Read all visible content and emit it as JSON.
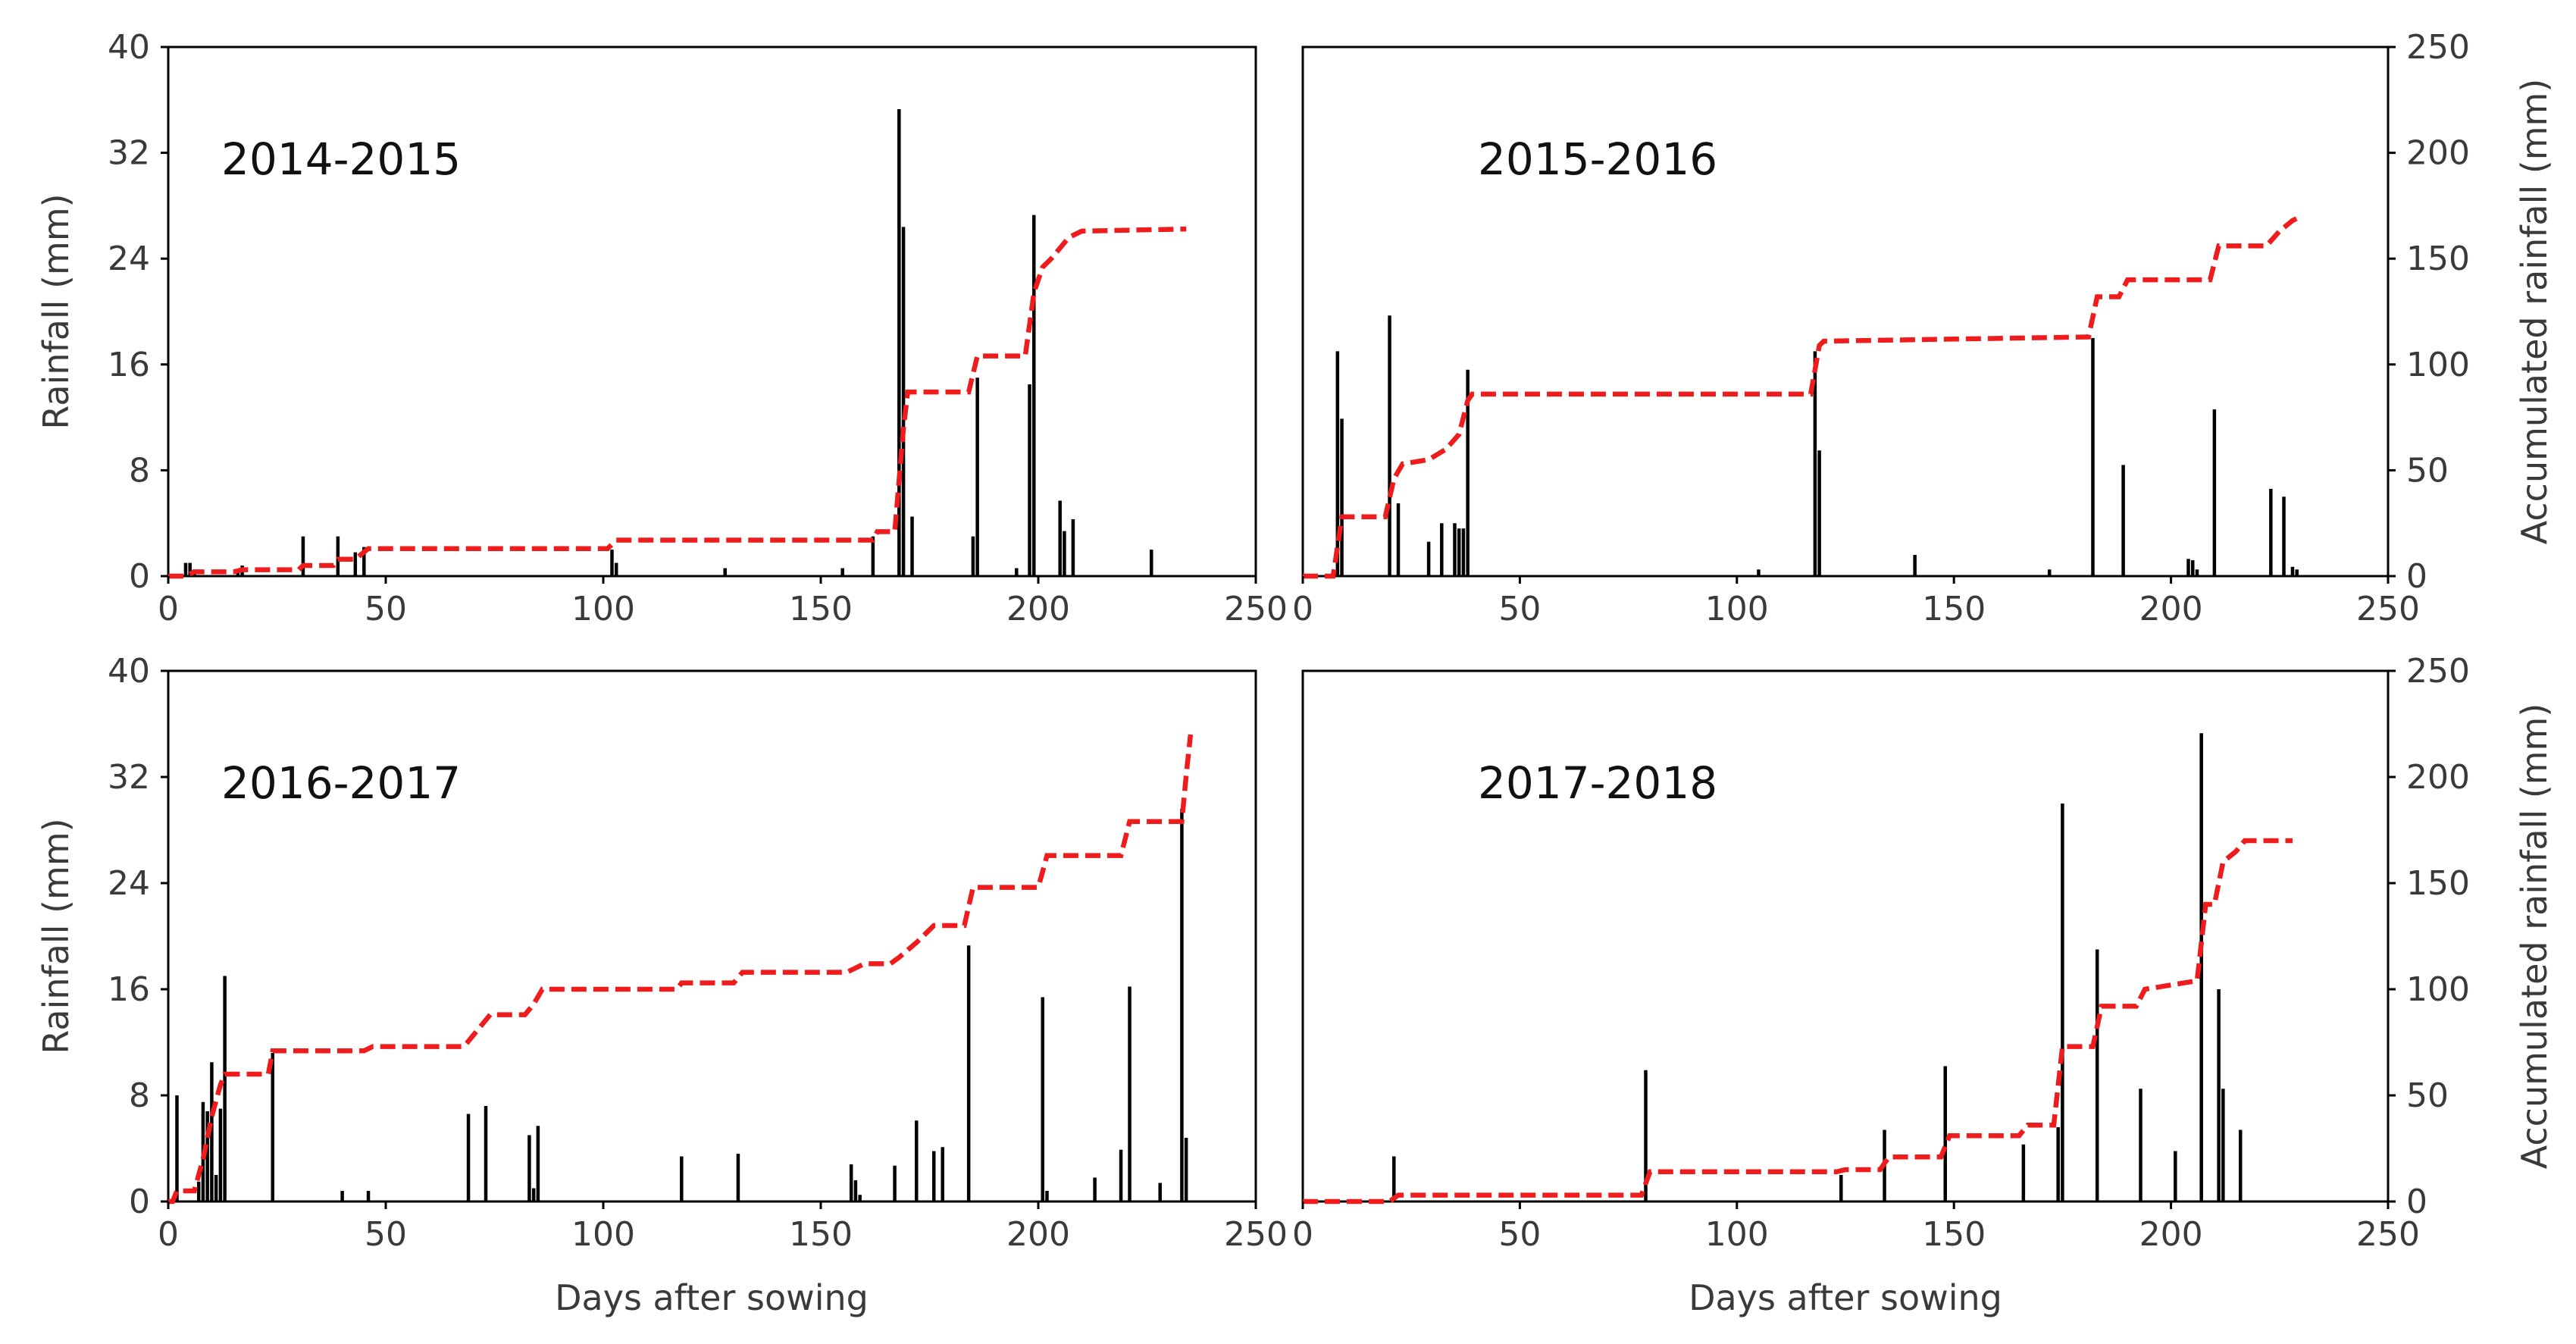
{
  "figure": {
    "xlabel": "Days after sowing",
    "ylabel_left": "Rainfall (mm)",
    "ylabel_right": "Accumulated rainfall (mm)",
    "colors": {
      "bars": "#000000",
      "accumulated_line": "#ee1c1c"
    }
  },
  "chart_data": [
    {
      "type": "bar",
      "title": "2014-2015",
      "xlabel": "",
      "ylabel": "Rainfall (mm)",
      "y2label": "",
      "xlim": [
        0,
        250
      ],
      "ylim": [
        0,
        40
      ],
      "y2lim": [
        0,
        250
      ],
      "xticks": [
        0,
        50,
        100,
        150,
        200,
        250
      ],
      "yticks": [
        0,
        8,
        16,
        24,
        32,
        40
      ],
      "y2ticks": [],
      "show_left_axis": true,
      "show_right_axis": false,
      "bars": {
        "name": "Daily rainfall (mm)",
        "x": [
          4,
          5,
          6,
          16,
          17,
          31,
          39,
          43,
          45,
          102,
          103,
          128,
          155,
          162,
          168,
          169,
          171,
          185,
          186,
          195,
          198,
          199,
          205,
          206,
          208,
          226
        ],
        "values": [
          1.0,
          1.0,
          0.5,
          0.5,
          0.8,
          3.0,
          3.0,
          1.8,
          2.2,
          2.0,
          1.0,
          0.6,
          0.6,
          3.0,
          35.3,
          26.4,
          4.5,
          3.0,
          15.0,
          0.6,
          14.5,
          27.3,
          5.7,
          3.4,
          4.3,
          2.0
        ]
      },
      "accumulated": {
        "name": "Accumulated rainfall (mm)",
        "x": [
          0,
          4,
          6,
          15,
          17,
          30,
          31,
          38,
          39,
          43,
          46,
          101,
          103,
          162,
          163,
          167,
          169,
          170,
          184,
          186,
          197,
          199,
          201,
          203,
          207,
          210,
          234
        ],
        "values": [
          0,
          0,
          2,
          2,
          3,
          3,
          5,
          5,
          8,
          8,
          13,
          13,
          17,
          17,
          21,
          21,
          70,
          87,
          87,
          104,
          104,
          134,
          146,
          150,
          160,
          163,
          164
        ]
      }
    },
    {
      "type": "bar",
      "title": "2015-2016",
      "xlabel": "",
      "ylabel": "",
      "y2label": "Accumulated rainfall (mm)",
      "xlim": [
        0,
        250
      ],
      "ylim": [
        0,
        40
      ],
      "y2lim": [
        0,
        250
      ],
      "xticks": [
        0,
        50,
        100,
        150,
        200,
        250
      ],
      "yticks": [],
      "y2ticks": [
        0,
        50,
        100,
        150,
        200,
        250
      ],
      "show_left_axis": false,
      "show_right_axis": true,
      "bars": {
        "name": "Daily rainfall (mm)",
        "x": [
          8,
          9,
          20,
          22,
          29,
          32,
          35,
          36,
          37,
          38,
          105,
          118,
          119,
          141,
          172,
          182,
          189,
          204,
          205,
          206,
          210,
          223,
          226,
          228,
          229
        ],
        "values": [
          17.0,
          11.9,
          19.7,
          5.5,
          2.6,
          4.0,
          4.0,
          3.6,
          3.6,
          15.6,
          0.5,
          17.0,
          9.5,
          1.6,
          0.5,
          18.0,
          8.4,
          1.3,
          1.2,
          0.5,
          12.6,
          6.6,
          6.0,
          0.7,
          0.5
        ]
      },
      "accumulated": {
        "name": "Accumulated rainfall (mm)",
        "x": [
          0,
          7,
          9,
          19,
          21,
          23,
          29,
          33,
          36,
          38,
          39,
          117,
          119,
          120,
          150,
          181,
          183,
          188,
          190,
          209,
          211,
          222,
          225,
          228,
          230
        ],
        "values": [
          0,
          0,
          28,
          28,
          46,
          53,
          55,
          60,
          67,
          83,
          86,
          86,
          109,
          111,
          112,
          113,
          132,
          132,
          140,
          140,
          156,
          156,
          163,
          168,
          170
        ]
      }
    },
    {
      "type": "bar",
      "title": "2016-2017",
      "xlabel": "Days after sowing",
      "ylabel": "Rainfall (mm)",
      "y2label": "",
      "xlim": [
        0,
        250
      ],
      "ylim": [
        0,
        40
      ],
      "y2lim": [
        0,
        250
      ],
      "xticks": [
        0,
        50,
        100,
        150,
        200,
        250
      ],
      "yticks": [
        0,
        8,
        16,
        24,
        32,
        40
      ],
      "y2ticks": [],
      "show_left_axis": true,
      "show_right_axis": false,
      "bars": {
        "name": "Daily rainfall (mm)",
        "x": [
          2,
          7,
          8,
          9,
          10,
          11,
          12,
          13,
          24,
          40,
          46,
          69,
          73,
          83,
          84,
          85,
          118,
          131,
          157,
          158,
          159,
          167,
          172,
          176,
          178,
          184,
          201,
          202,
          213,
          219,
          221,
          228,
          233,
          234
        ],
        "values": [
          8.0,
          1.5,
          7.5,
          6.8,
          10.5,
          2.0,
          7.0,
          17.0,
          11.2,
          0.8,
          0.8,
          6.6,
          7.2,
          5.0,
          1.0,
          5.7,
          3.4,
          3.6,
          2.8,
          1.6,
          0.5,
          2.7,
          6.1,
          3.8,
          4.1,
          19.3,
          15.4,
          0.8,
          1.8,
          3.9,
          16.2,
          1.4,
          29.6,
          4.8
        ]
      },
      "accumulated": {
        "name": "Accumulated rainfall (mm)",
        "x": [
          0,
          1,
          2,
          6,
          8,
          10,
          12,
          13,
          23,
          24,
          45,
          47,
          68,
          70,
          72,
          74,
          82,
          84,
          86,
          117,
          118,
          130,
          132,
          156,
          158,
          160,
          166,
          168,
          172,
          176,
          183,
          185,
          200,
          202,
          219,
          221,
          233,
          234,
          235
        ],
        "values": [
          0,
          0,
          5,
          5,
          20,
          40,
          55,
          60,
          60,
          71,
          71,
          73,
          73,
          78,
          83,
          88,
          88,
          93,
          100,
          100,
          103,
          103,
          108,
          108,
          110,
          112,
          112,
          115,
          122,
          130,
          130,
          148,
          148,
          163,
          163,
          179,
          179,
          201,
          220
        ]
      }
    },
    {
      "type": "bar",
      "title": "2017-2018",
      "xlabel": "Days after sowing",
      "ylabel": "",
      "y2label": "Accumulated rainfall (mm)",
      "xlim": [
        0,
        250
      ],
      "ylim": [
        0,
        40
      ],
      "y2lim": [
        0,
        250
      ],
      "xticks": [
        0,
        50,
        100,
        150,
        200,
        250
      ],
      "yticks": [],
      "y2ticks": [
        0,
        50,
        100,
        150,
        200,
        250
      ],
      "show_left_axis": false,
      "show_right_axis": true,
      "bars": {
        "name": "Daily rainfall (mm)",
        "x": [
          21,
          79,
          124,
          134,
          148,
          166,
          174,
          175,
          183,
          193,
          201,
          207,
          211,
          212,
          216
        ],
        "values": [
          3.4,
          9.9,
          2.0,
          5.4,
          10.2,
          4.3,
          5.6,
          30.0,
          19.0,
          8.5,
          3.8,
          35.3,
          16.0,
          8.5,
          5.4
        ]
      },
      "accumulated": {
        "name": "Accumulated rainfall (mm)",
        "x": [
          0,
          20,
          22,
          78,
          80,
          123,
          125,
          133,
          135,
          147,
          149,
          165,
          167,
          173,
          175,
          182,
          184,
          192,
          194,
          206,
          208,
          210,
          212,
          215,
          217,
          228
        ],
        "values": [
          0,
          0,
          3,
          3,
          14,
          14,
          15,
          15,
          21,
          21,
          31,
          31,
          36,
          36,
          73,
          73,
          92,
          92,
          100,
          104,
          140,
          140,
          160,
          165,
          170,
          170
        ]
      }
    }
  ]
}
